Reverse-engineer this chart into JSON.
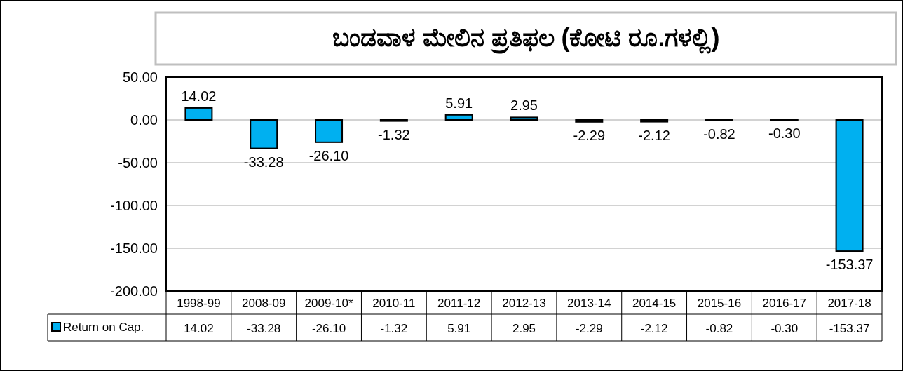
{
  "chart_data": {
    "type": "bar",
    "title": "ಬಂಡವಾಳ ಮೇಲಿನ ಪ್ರತಿಫಲ (ಕೋಟಿ ರೂ.ಗಳಲ್ಲಿ)",
    "categories": [
      "1998-99",
      "2008-09",
      "2009-10*",
      "2010-11",
      "2011-12",
      "2012-13",
      "2013-14",
      "2014-15",
      "2015-16",
      "2016-17",
      "2017-18"
    ],
    "series": [
      {
        "name": "Return on Cap.",
        "color": "#00b0f0",
        "values": [
          14.02,
          -33.28,
          -26.1,
          -1.32,
          5.91,
          2.95,
          -2.29,
          -2.12,
          -0.82,
          -0.3,
          -153.37
        ],
        "value_labels": [
          "14.02",
          "-33.28",
          "-26.10",
          "-1.32",
          "5.91",
          "2.95",
          "-2.29",
          "-2.12",
          "-0.82",
          "-0.30",
          "-153.37"
        ]
      }
    ],
    "ylim": [
      -200,
      50
    ],
    "yticks": [
      {
        "value": -200,
        "label": "-200.00"
      },
      {
        "value": -150,
        "label": "-150.00"
      },
      {
        "value": -100,
        "label": "-100.00"
      },
      {
        "value": -50,
        "label": "-50.00"
      },
      {
        "value": 0,
        "label": "0.00"
      },
      {
        "value": 50,
        "label": "50.00"
      }
    ],
    "grid": "y",
    "legend": "bottom left"
  }
}
